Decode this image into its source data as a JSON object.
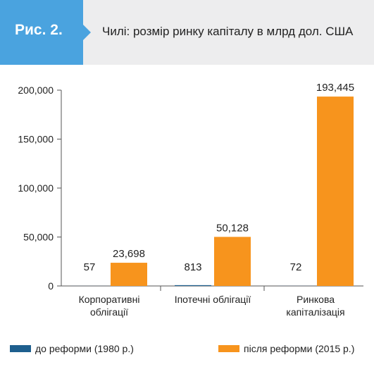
{
  "header": {
    "tag": "Рис. 2.",
    "title": "Чилі: розмір ринку капіталу в млрд дол. США"
  },
  "colors": {
    "header_bg": "#ededee",
    "tag_bg": "#4aa3df",
    "before": "#1e5f8e",
    "after": "#f7941d"
  },
  "chart_data": {
    "type": "bar",
    "categories": [
      [
        "Корпоративні",
        "облігації"
      ],
      [
        "Іпотечні облігації"
      ],
      [
        "Ринкова",
        "капіталізація"
      ]
    ],
    "series": [
      {
        "name": "до реформи (1980 р.)",
        "values": [
          57,
          813,
          72
        ],
        "labels": [
          "57",
          "813",
          "72"
        ]
      },
      {
        "name": "після реформи (2015 р.)",
        "values": [
          23698,
          50128,
          193445
        ],
        "labels": [
          "23,698",
          "50,128",
          "193,445"
        ]
      }
    ],
    "yticks": [
      0,
      50000,
      100000,
      150000,
      200000
    ],
    "ytick_labels": [
      "0",
      "50,000",
      "100,000",
      "150,000",
      "200,000"
    ],
    "ylim": [
      0,
      200000
    ],
    "legend": "bottom",
    "grid": false
  }
}
